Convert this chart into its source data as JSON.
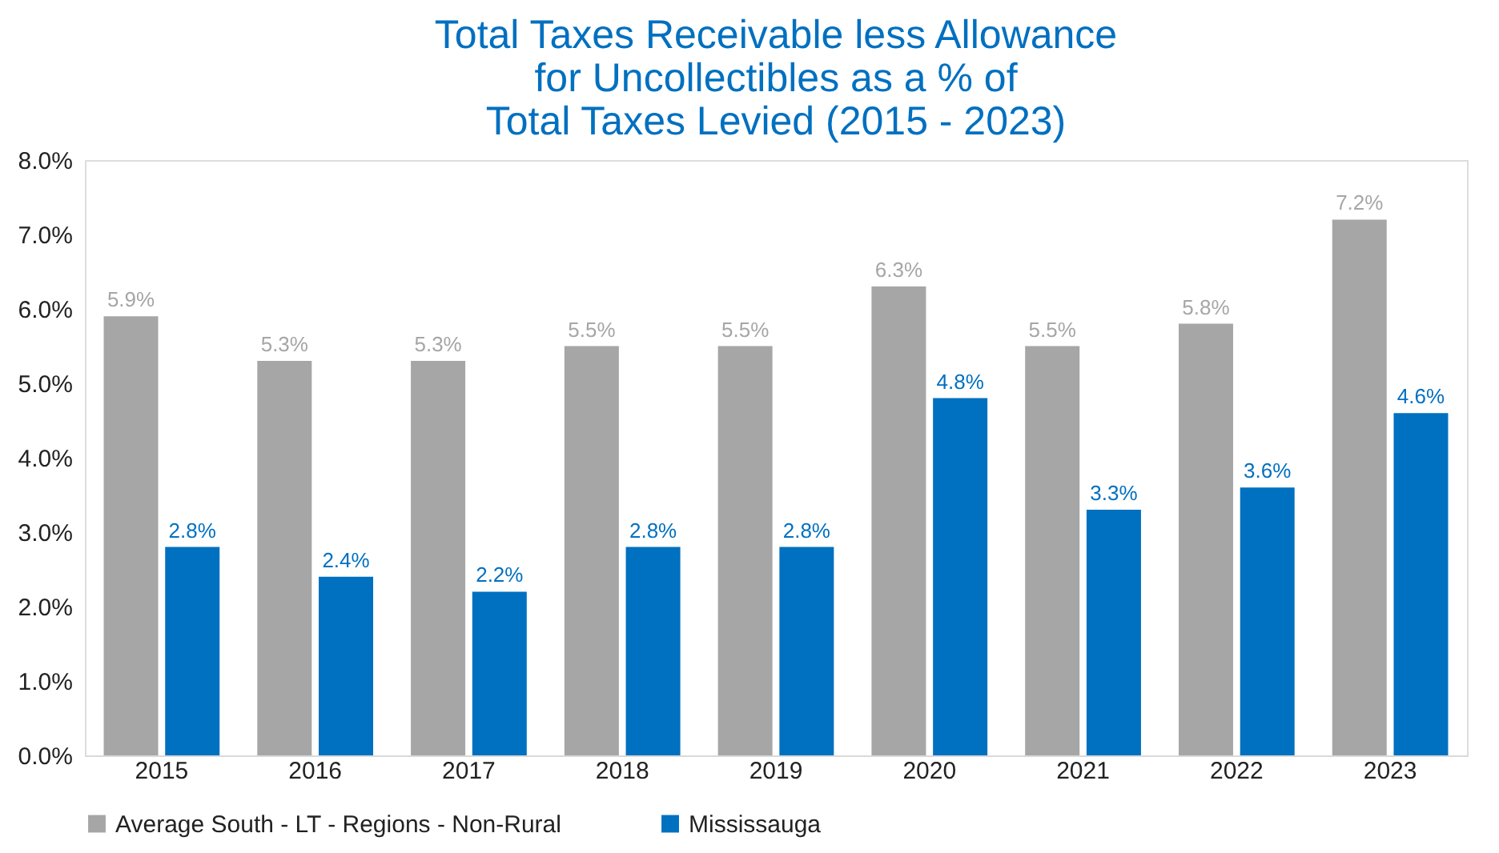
{
  "chart_data": {
    "type": "bar",
    "title": "Total Taxes Receivable less Allowance\nfor Uncollectibles as a % of\nTotal Taxes Levied (2015 - 2023)",
    "categories": [
      "2015",
      "2016",
      "2017",
      "2018",
      "2019",
      "2020",
      "2021",
      "2022",
      "2023"
    ],
    "series": [
      {
        "name": "Average South - LT - Regions - Non-Rural",
        "color": "#a6a6a6",
        "values": [
          5.9,
          5.3,
          5.3,
          5.5,
          5.5,
          6.3,
          5.5,
          5.8,
          7.2
        ],
        "value_labels": [
          "5.9%",
          "5.3%",
          "5.3%",
          "5.5%",
          "5.5%",
          "6.3%",
          "5.5%",
          "5.8%",
          "7.2%"
        ]
      },
      {
        "name": "Mississauga",
        "color": "#0070c0",
        "values": [
          2.8,
          2.4,
          2.2,
          2.8,
          2.8,
          4.8,
          3.3,
          3.6,
          4.6
        ],
        "value_labels": [
          "2.8%",
          "2.4%",
          "2.2%",
          "2.8%",
          "2.8%",
          "4.8%",
          "3.3%",
          "3.6%",
          "4.6%"
        ]
      }
    ],
    "ylim": [
      0,
      8
    ],
    "yticks": [
      {
        "value": 0,
        "label": "0.0%"
      },
      {
        "value": 1,
        "label": "1.0%"
      },
      {
        "value": 2,
        "label": "2.0%"
      },
      {
        "value": 3,
        "label": "3.0%"
      },
      {
        "value": 4,
        "label": "4.0%"
      },
      {
        "value": 5,
        "label": "5.0%"
      },
      {
        "value": 6,
        "label": "6.0%"
      },
      {
        "value": 7,
        "label": "7.0%"
      },
      {
        "value": 8,
        "label": "8.0%"
      }
    ],
    "grid": false,
    "legend": "bottom"
  }
}
